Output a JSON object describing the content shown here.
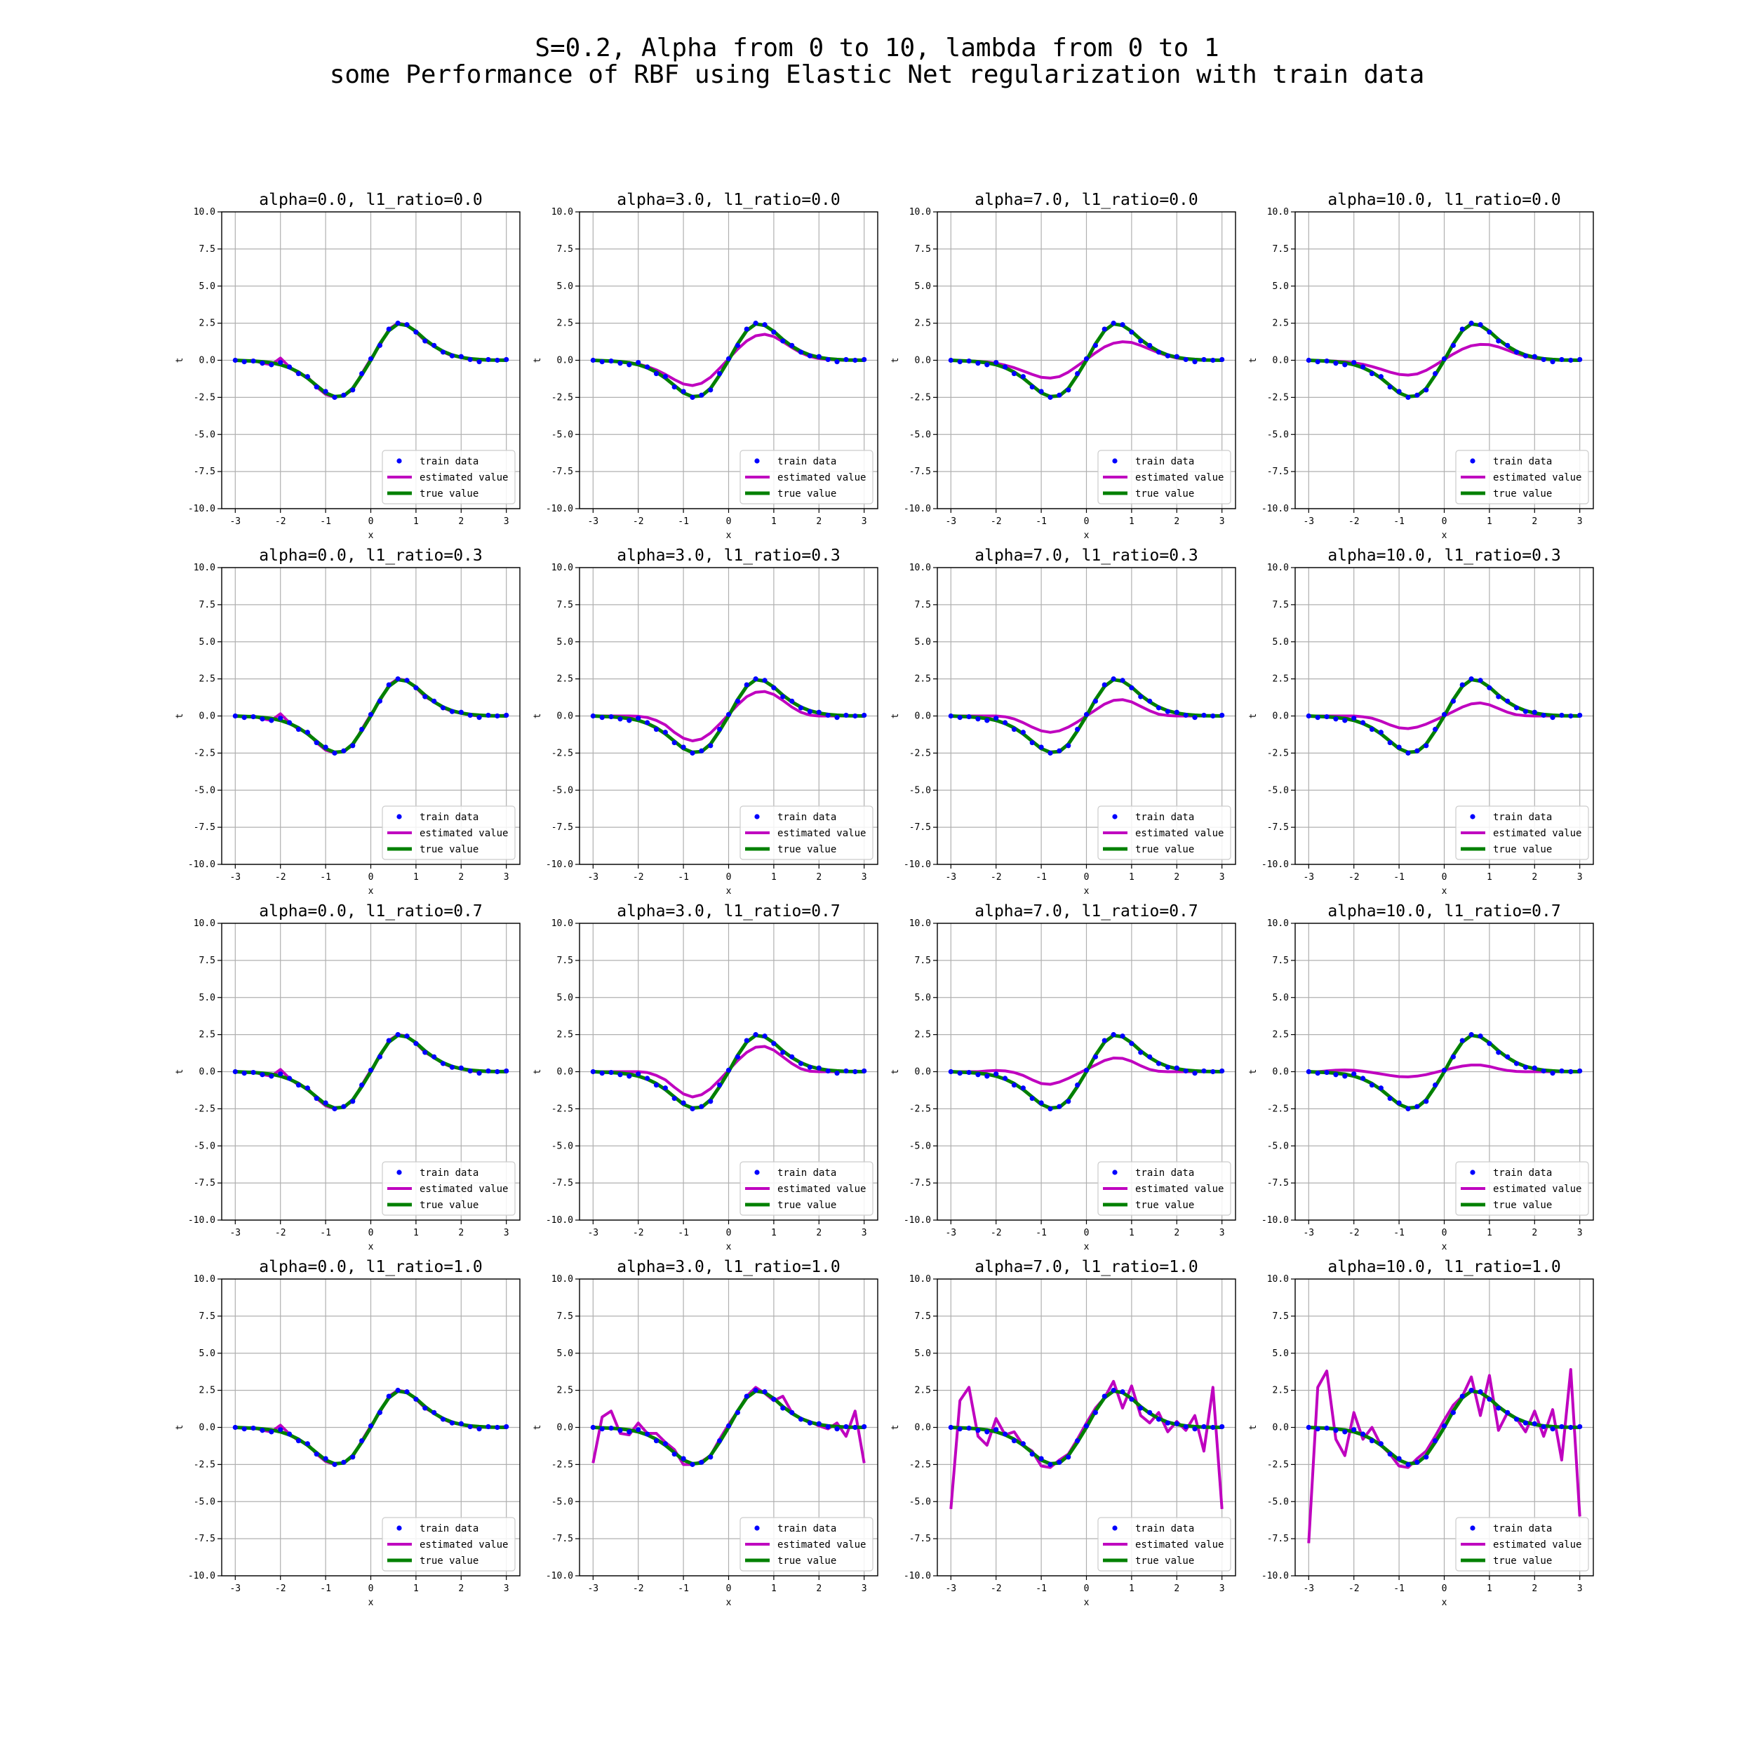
{
  "figure": {
    "title_line1": "S=0.2, Alpha from 0 to 10, lambda from 0 to 1",
    "title_line2": "some Performance of RBF using Elastic Net regularization with train data"
  },
  "chart_data": {
    "type": "line",
    "grid": true,
    "xlim": [
      -3.3,
      3.3
    ],
    "ylim": [
      -10,
      10
    ],
    "xticks": [
      -3,
      -2,
      -1,
      0,
      1,
      2,
      3
    ],
    "yticks": [
      10.0,
      7.5,
      5.0,
      2.5,
      0.0,
      -2.5,
      -5.0,
      -7.5,
      -10.0
    ],
    "xlabel": "x",
    "ylabel": "t",
    "legend_position": "lower right",
    "legend": [
      "train data",
      "estimated value",
      "true value"
    ],
    "colors": {
      "train": "#0000ff",
      "estimated": "#bf00bf",
      "true": "#008000"
    },
    "x": [
      -3.0,
      -2.8,
      -2.6,
      -2.4,
      -2.2,
      -2.0,
      -1.8,
      -1.6,
      -1.4,
      -1.2,
      -1.0,
      -0.8,
      -0.6,
      -0.4,
      -0.2,
      0.0,
      0.2,
      0.4,
      0.6,
      0.8,
      1.0,
      1.2,
      1.4,
      1.6,
      1.8,
      2.0,
      2.2,
      2.4,
      2.6,
      2.8,
      3.0
    ],
    "true_value": [
      0.0,
      -0.03,
      -0.05,
      -0.1,
      -0.17,
      -0.3,
      -0.5,
      -0.8,
      -1.2,
      -1.7,
      -2.2,
      -2.45,
      -2.4,
      -1.9,
      -1.0,
      0.0,
      1.1,
      2.0,
      2.45,
      2.35,
      1.95,
      1.4,
      0.95,
      0.6,
      0.35,
      0.2,
      0.1,
      0.05,
      0.02,
      0.01,
      0.0
    ],
    "train_data": [
      0.0,
      -0.1,
      -0.05,
      -0.2,
      -0.3,
      -0.15,
      -0.45,
      -0.9,
      -1.1,
      -1.8,
      -2.1,
      -2.5,
      -2.35,
      -2.0,
      -0.9,
      0.1,
      1.0,
      2.1,
      2.5,
      2.4,
      1.9,
      1.3,
      1.0,
      0.55,
      0.3,
      0.25,
      0.05,
      -0.1,
      0.05,
      0.0,
      0.05
    ],
    "panels": [
      {
        "title": "alpha=0.0,  l1_ratio=0.0",
        "estimated": [
          0.0,
          -0.05,
          0.0,
          -0.2,
          -0.3,
          0.15,
          -0.45,
          -0.9,
          -1.1,
          -1.8,
          -2.3,
          -2.5,
          -2.35,
          -2.0,
          -0.9,
          0.1,
          1.0,
          2.1,
          2.5,
          2.4,
          1.9,
          1.3,
          0.95,
          0.55,
          0.3,
          0.2,
          0.05,
          0.0,
          0.05,
          0.0,
          0.05
        ]
      },
      {
        "title": "alpha=3.0,  l1_ratio=0.0",
        "estimated": [
          0.0,
          -0.02,
          -0.05,
          -0.08,
          -0.15,
          -0.25,
          -0.42,
          -0.65,
          -0.95,
          -1.3,
          -1.6,
          -1.7,
          -1.55,
          -1.15,
          -0.55,
          0.1,
          0.75,
          1.3,
          1.65,
          1.75,
          1.6,
          1.25,
          0.85,
          0.5,
          0.25,
          0.12,
          0.05,
          0.02,
          0.0,
          0.0,
          0.0
        ]
      },
      {
        "title": "alpha=7.0,  l1_ratio=0.0",
        "estimated": [
          0.0,
          -0.02,
          -0.04,
          -0.07,
          -0.12,
          -0.2,
          -0.33,
          -0.5,
          -0.72,
          -0.95,
          -1.15,
          -1.2,
          -1.1,
          -0.8,
          -0.38,
          0.05,
          0.5,
          0.9,
          1.15,
          1.25,
          1.2,
          1.0,
          0.75,
          0.5,
          0.3,
          0.15,
          0.07,
          0.03,
          0.01,
          0.0,
          0.0
        ]
      },
      {
        "title": "alpha=10.0,  l1_ratio=0.0",
        "estimated": [
          0.0,
          -0.02,
          -0.03,
          -0.06,
          -0.1,
          -0.17,
          -0.27,
          -0.42,
          -0.6,
          -0.8,
          -0.95,
          -1.0,
          -0.92,
          -0.68,
          -0.33,
          0.05,
          0.42,
          0.75,
          0.98,
          1.07,
          1.05,
          0.9,
          0.68,
          0.45,
          0.27,
          0.14,
          0.06,
          0.03,
          0.01,
          0.0,
          0.0
        ]
      },
      {
        "title": "alpha=0.0,  l1_ratio=0.3",
        "estimated": [
          0.0,
          -0.05,
          0.0,
          -0.2,
          -0.3,
          0.15,
          -0.45,
          -0.9,
          -1.1,
          -1.8,
          -2.3,
          -2.5,
          -2.35,
          -2.0,
          -0.9,
          0.1,
          1.0,
          2.1,
          2.5,
          2.4,
          1.9,
          1.3,
          0.95,
          0.55,
          0.3,
          0.2,
          0.05,
          0.0,
          0.05,
          0.0,
          0.05
        ]
      },
      {
        "title": "alpha=3.0,  l1_ratio=0.3",
        "estimated": [
          0.0,
          0.0,
          0.0,
          0.0,
          0.0,
          -0.02,
          -0.1,
          -0.3,
          -0.6,
          -1.1,
          -1.5,
          -1.68,
          -1.55,
          -1.15,
          -0.55,
          0.1,
          0.75,
          1.3,
          1.6,
          1.65,
          1.45,
          1.05,
          0.6,
          0.25,
          0.05,
          0.0,
          0.0,
          0.0,
          0.0,
          0.0,
          0.0
        ]
      },
      {
        "title": "alpha=7.0,  l1_ratio=0.3",
        "estimated": [
          0.0,
          0.0,
          0.0,
          0.0,
          0.0,
          0.0,
          -0.05,
          -0.2,
          -0.45,
          -0.75,
          -1.0,
          -1.1,
          -1.0,
          -0.75,
          -0.4,
          0.0,
          0.4,
          0.8,
          1.05,
          1.1,
          0.95,
          0.65,
          0.35,
          0.12,
          0.03,
          0.0,
          0.0,
          0.0,
          0.0,
          0.0,
          0.0
        ]
      },
      {
        "title": "alpha=10.0,  l1_ratio=0.3",
        "estimated": [
          0.0,
          0.0,
          0.0,
          0.0,
          0.0,
          0.0,
          -0.05,
          -0.15,
          -0.35,
          -0.6,
          -0.8,
          -0.85,
          -0.75,
          -0.55,
          -0.28,
          0.0,
          0.3,
          0.6,
          0.82,
          0.88,
          0.75,
          0.5,
          0.25,
          0.08,
          0.02,
          0.0,
          0.0,
          0.0,
          0.0,
          0.0,
          0.0
        ]
      },
      {
        "title": "alpha=0.0,  l1_ratio=0.7",
        "estimated": [
          0.0,
          -0.05,
          0.0,
          -0.2,
          -0.3,
          0.15,
          -0.45,
          -0.9,
          -1.1,
          -1.8,
          -2.3,
          -2.5,
          -2.35,
          -2.0,
          -0.9,
          0.1,
          1.0,
          2.1,
          2.5,
          2.4,
          1.9,
          1.3,
          0.95,
          0.55,
          0.3,
          0.2,
          0.05,
          0.0,
          0.05,
          0.0,
          0.05
        ]
      },
      {
        "title": "alpha=3.0,  l1_ratio=0.7",
        "estimated": [
          0.0,
          0.0,
          0.0,
          0.0,
          0.0,
          0.0,
          -0.05,
          -0.25,
          -0.55,
          -1.05,
          -1.5,
          -1.7,
          -1.55,
          -1.15,
          -0.55,
          0.1,
          0.75,
          1.3,
          1.65,
          1.7,
          1.45,
          1.0,
          0.55,
          0.2,
          0.03,
          0.0,
          0.0,
          0.0,
          0.0,
          0.0,
          0.0
        ]
      },
      {
        "title": "alpha=7.0,  l1_ratio=0.7",
        "estimated": [
          0.0,
          0.0,
          0.0,
          0.0,
          0.05,
          0.08,
          0.05,
          -0.05,
          -0.25,
          -0.55,
          -0.8,
          -0.85,
          -0.7,
          -0.45,
          -0.15,
          0.15,
          0.45,
          0.75,
          0.92,
          0.9,
          0.7,
          0.4,
          0.15,
          0.03,
          0.0,
          0.0,
          0.0,
          0.0,
          0.0,
          0.0,
          0.0
        ]
      },
      {
        "title": "alpha=10.0,  l1_ratio=0.7",
        "estimated": [
          0.0,
          0.0,
          0.05,
          0.1,
          0.12,
          0.1,
          0.03,
          -0.05,
          -0.15,
          -0.25,
          -0.33,
          -0.35,
          -0.3,
          -0.2,
          -0.05,
          0.1,
          0.25,
          0.38,
          0.45,
          0.45,
          0.35,
          0.2,
          0.08,
          0.02,
          0.0,
          0.0,
          0.0,
          0.0,
          0.0,
          0.0,
          0.0
        ]
      },
      {
        "title": "alpha=0.0,  l1_ratio=1.0",
        "estimated": [
          0.0,
          -0.05,
          0.0,
          -0.2,
          -0.3,
          0.15,
          -0.45,
          -0.9,
          -1.1,
          -1.8,
          -2.3,
          -2.5,
          -2.35,
          -2.0,
          -0.9,
          0.1,
          1.0,
          2.1,
          2.5,
          2.4,
          1.9,
          1.3,
          0.95,
          0.55,
          0.3,
          0.2,
          0.05,
          0.0,
          0.05,
          0.0,
          0.05
        ]
      },
      {
        "title": "alpha=3.0,  l1_ratio=1.0",
        "estimated": [
          -2.4,
          0.7,
          1.1,
          -0.4,
          -0.5,
          0.3,
          -0.4,
          -0.4,
          -1.0,
          -1.5,
          -2.5,
          -2.5,
          -2.3,
          -1.9,
          -0.8,
          0.2,
          1.1,
          2.1,
          2.7,
          2.3,
          1.8,
          2.1,
          1.0,
          0.6,
          0.4,
          0.1,
          -0.1,
          0.3,
          -0.6,
          1.1,
          -2.4
        ]
      },
      {
        "title": "alpha=7.0,  l1_ratio=1.0",
        "estimated": [
          -5.5,
          1.8,
          2.7,
          -0.6,
          -1.2,
          0.6,
          -0.5,
          -0.3,
          -1.2,
          -1.6,
          -2.6,
          -2.7,
          -2.2,
          -1.8,
          -0.8,
          0.3,
          1.3,
          2.0,
          3.1,
          1.3,
          2.8,
          0.8,
          0.3,
          1.0,
          -0.3,
          0.4,
          -0.2,
          0.8,
          -1.6,
          2.7,
          -5.5
        ]
      },
      {
        "title": "alpha=10.0,  l1_ratio=1.0",
        "estimated": [
          -7.8,
          2.7,
          3.8,
          -0.8,
          -1.9,
          1.0,
          -0.8,
          0.0,
          -1.2,
          -1.8,
          -2.6,
          -2.7,
          -2.1,
          -1.6,
          -0.6,
          0.5,
          1.5,
          2.1,
          3.4,
          0.8,
          3.5,
          -0.2,
          1.0,
          0.6,
          -0.3,
          1.1,
          -0.6,
          1.2,
          -2.2,
          3.9,
          -6.0
        ]
      }
    ]
  }
}
